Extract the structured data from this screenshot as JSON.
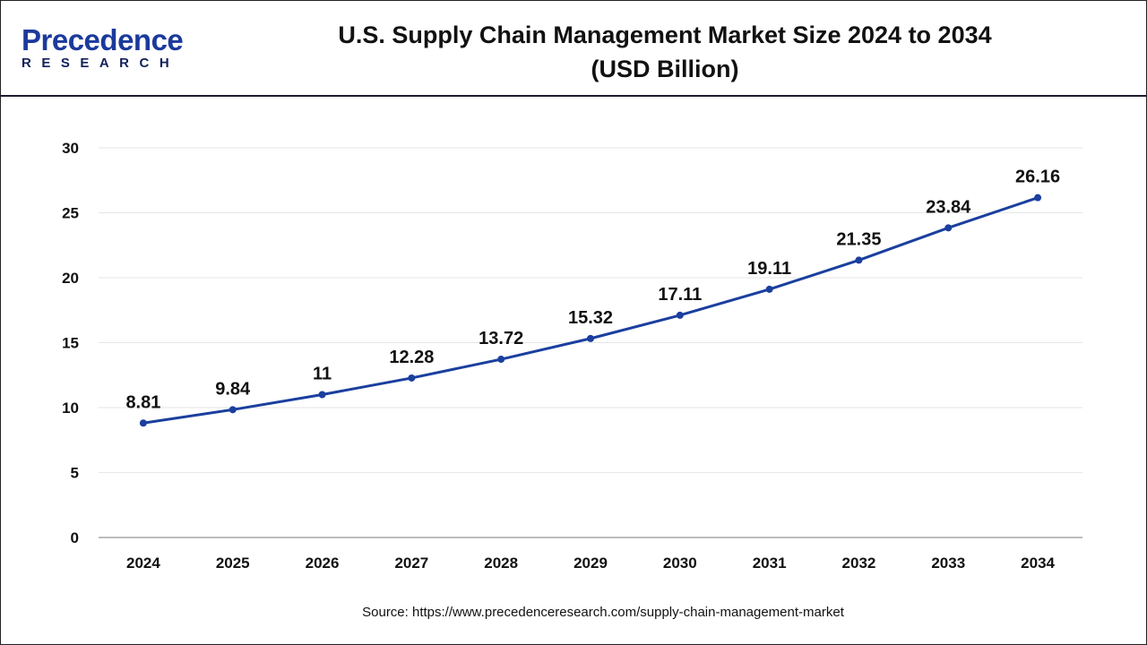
{
  "brand": {
    "logo_main": "Precedence",
    "logo_sub": "RESEARCH"
  },
  "header": {
    "title_line1": "U.S. Supply Chain Management Market Size 2024 to 2034",
    "title_line2": "(USD Billion)"
  },
  "source": "Source: https://www.precedenceresearch.com/supply-chain-management-market",
  "chart_data": {
    "type": "line",
    "title": "U.S. Supply Chain Management Market Size 2024 to 2034 (USD Billion)",
    "categories": [
      "2024",
      "2025",
      "2026",
      "2027",
      "2028",
      "2029",
      "2030",
      "2031",
      "2032",
      "2033",
      "2034"
    ],
    "values": [
      8.81,
      9.84,
      11,
      12.28,
      13.72,
      15.32,
      17.11,
      19.11,
      21.35,
      23.84,
      26.16
    ],
    "data_labels": [
      "8.81",
      "9.84",
      "11",
      "12.28",
      "13.72",
      "15.32",
      "17.11",
      "19.11",
      "21.35",
      "23.84",
      "26.16"
    ],
    "yticks": [
      0,
      5,
      10,
      15,
      20,
      25,
      30
    ],
    "ylim": [
      0,
      30
    ],
    "grid": true,
    "line_color": "#1a3f9e",
    "xlabel": "",
    "ylabel": ""
  }
}
